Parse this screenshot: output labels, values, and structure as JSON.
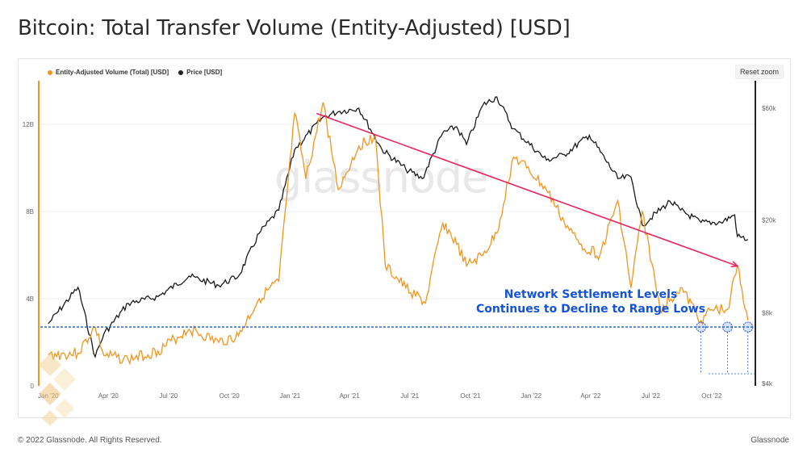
{
  "title": "Bitcoin: Total Transfer Volume (Entity-Adjusted) [USD]",
  "reset_zoom": "Reset zoom",
  "watermark": "glassnode",
  "footer": {
    "copyright": "© 2022 Glassnode. All Rights Reserved.",
    "brand": "Glassnode"
  },
  "annotation": {
    "line1": "Network Settlement Levels",
    "line2": "Continues to Decline to Range Lows"
  },
  "colors": {
    "volume": "#f7931a",
    "price": "#1a1a1a",
    "trend": "#e8265e",
    "support": "#1f57d6"
  },
  "chart_data": {
    "type": "line",
    "x_ticks": [
      "Jan '20",
      "Apr '20",
      "Jul '20",
      "Oct '20",
      "Jan '21",
      "Apr '21",
      "Jul '21",
      "Oct '21",
      "Jan '22",
      "Apr '22",
      "Jul '22",
      "Oct '22"
    ],
    "y_left_ticks": [
      "0",
      "4B",
      "8B",
      "12B"
    ],
    "y_right_ticks": [
      "$4k",
      "$8k",
      "$20k",
      "$60k"
    ],
    "y_left_range": [
      0,
      14000000000
    ],
    "y_right_scale": "log",
    "legend_position": "top-left",
    "series": [
      {
        "name": "Entity-Adjusted Volume (Total) [USD]",
        "x": [
          "2020-01-01",
          "2020-02-15",
          "2020-03-12",
          "2020-03-25",
          "2020-05-01",
          "2020-06-15",
          "2020-08-01",
          "2020-09-15",
          "2020-10-15",
          "2020-11-15",
          "2020-12-15",
          "2021-01-08",
          "2021-01-25",
          "2021-02-20",
          "2021-03-15",
          "2021-04-15",
          "2021-05-10",
          "2021-05-25",
          "2021-06-25",
          "2021-07-25",
          "2021-08-20",
          "2021-09-10",
          "2021-09-25",
          "2021-10-20",
          "2021-11-10",
          "2021-12-05",
          "2021-12-25",
          "2022-01-24",
          "2022-02-20",
          "2022-03-15",
          "2022-04-15",
          "2022-05-12",
          "2022-06-01",
          "2022-06-18",
          "2022-07-15",
          "2022-08-15",
          "2022-09-15",
          "2022-10-01",
          "2022-10-25",
          "2022-11-09",
          "2022-11-25"
        ],
        "values": [
          1400000000.0,
          1500000000.0,
          2700000000.0,
          1400000000.0,
          1200000000.0,
          1600000000.0,
          2600000000.0,
          2000000000.0,
          2300000000.0,
          4000000000.0,
          4800000000.0,
          12500000000.0,
          9500000000.0,
          13000000000.0,
          9000000000.0,
          11000000000.0,
          11500000000.0,
          5500000000.0,
          4500000000.0,
          3800000000.0,
          7500000000.0,
          6500000000.0,
          5500000000.0,
          6000000000.0,
          7000000000.0,
          10500000000.0,
          10000000000.0,
          9000000000.0,
          7500000000.0,
          6500000000.0,
          6000000000.0,
          8500000000.0,
          4500000000.0,
          8000000000.0,
          3500000000.0,
          4500000000.0,
          3000000000.0,
          3500000000.0,
          3500000000.0,
          5500000000.0,
          3000000000.0
        ]
      },
      {
        "name": "Price [USD]",
        "x": [
          "2020-01-01",
          "2020-02-15",
          "2020-03-12",
          "2020-03-25",
          "2020-05-01",
          "2020-06-15",
          "2020-08-01",
          "2020-09-15",
          "2020-10-15",
          "2020-11-15",
          "2020-12-15",
          "2021-01-08",
          "2021-02-20",
          "2021-03-15",
          "2021-04-15",
          "2021-05-20",
          "2021-06-25",
          "2021-07-20",
          "2021-08-20",
          "2021-09-10",
          "2021-09-25",
          "2021-10-20",
          "2021-11-10",
          "2021-12-05",
          "2022-01-24",
          "2022-02-20",
          "2022-03-30",
          "2022-05-12",
          "2022-06-01",
          "2022-06-18",
          "2022-07-30",
          "2022-08-15",
          "2022-09-15",
          "2022-10-15",
          "2022-11-05",
          "2022-11-09",
          "2022-11-25"
        ],
        "values": [
          7200,
          10300,
          5200,
          6500,
          8800,
          9400,
          11500,
          10500,
          11500,
          17500,
          22000,
          40000,
          55000,
          58000,
          60000,
          40000,
          33000,
          30000,
          47000,
          50000,
          42000,
          62000,
          67000,
          49000,
          36000,
          38000,
          46000,
          30000,
          30500,
          19000,
          24000,
          22000,
          19500,
          19500,
          21000,
          17000,
          16500
        ]
      }
    ],
    "trend_line": {
      "from": {
        "x": "2021-02-10",
        "value": 12500000000.0
      },
      "to": {
        "x": "2022-11-09",
        "value": 5500000000.0
      }
    },
    "support_level": 2700000000.0
  }
}
